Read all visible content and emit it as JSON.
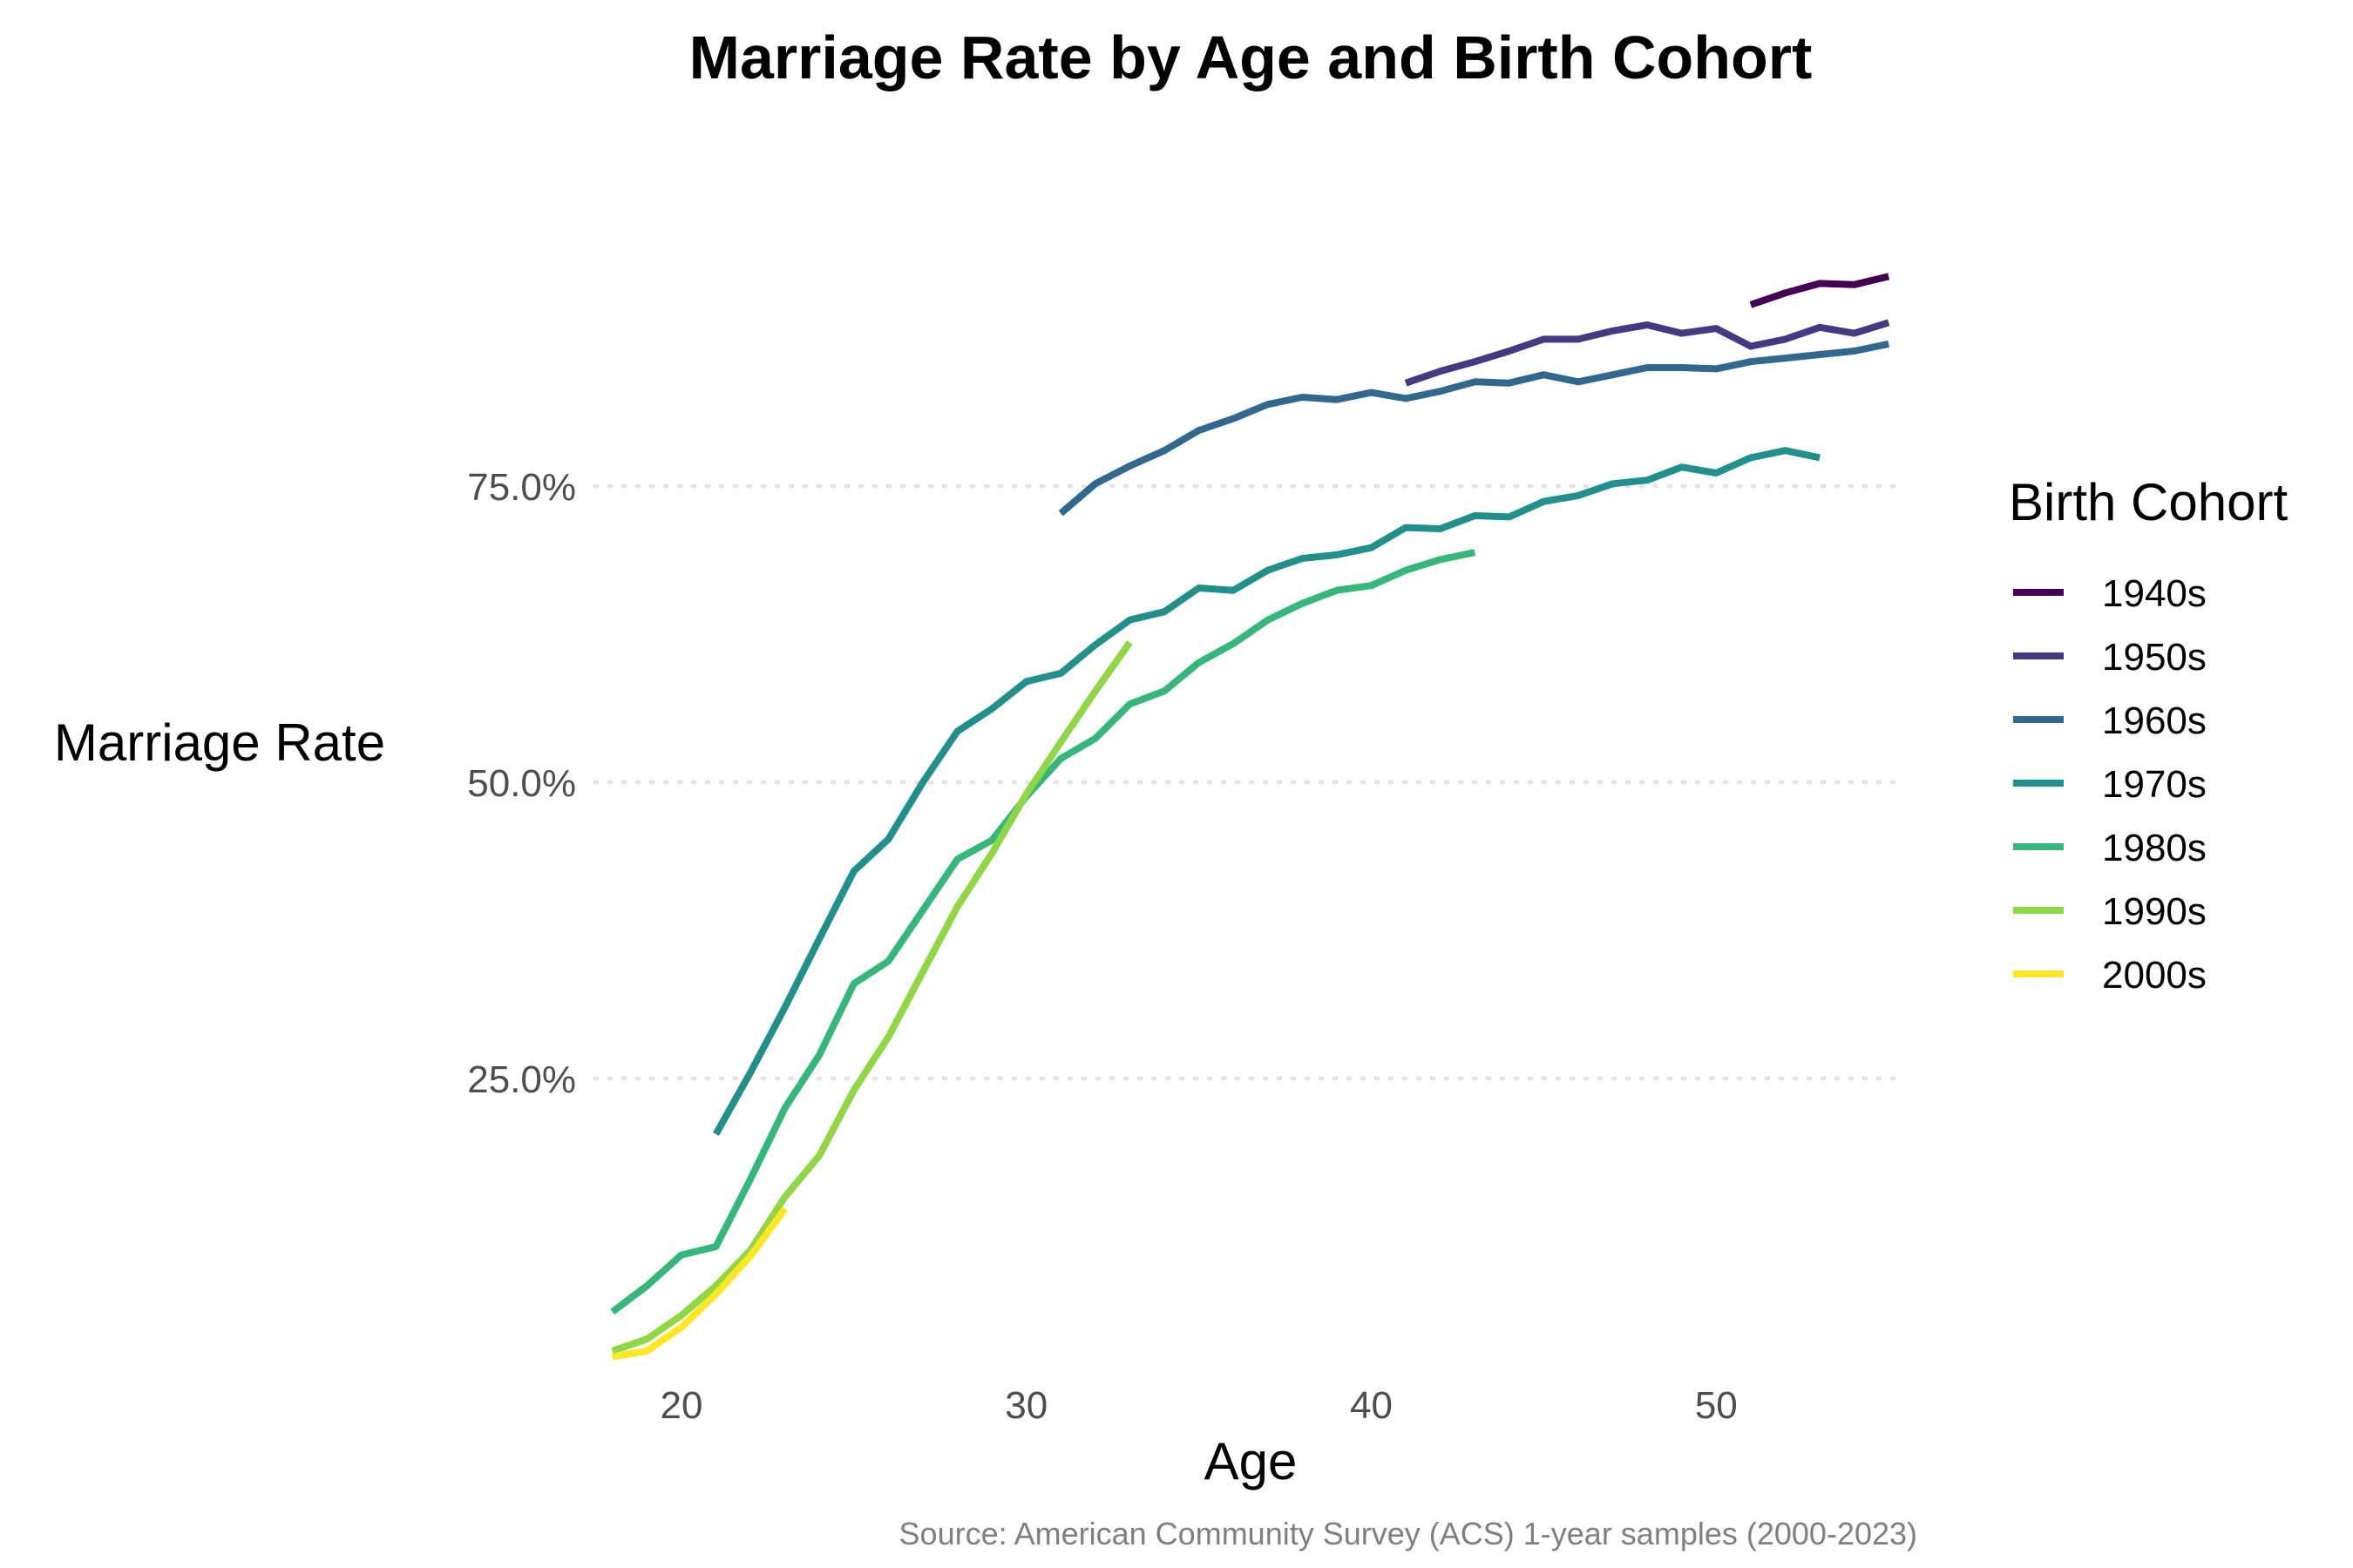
{
  "chart_data": {
    "type": "line",
    "title": "Marriage Rate by Age and Birth Cohort",
    "xlabel": "Age",
    "ylabel": "Marriage Rate",
    "caption": "Source: American Community Survey (ACS) 1-year samples (2000-2023)",
    "xlim": [
      17.5,
      55.5
    ],
    "ylim": [
      0.0,
      1.05
    ],
    "xticks": [
      20,
      30,
      40,
      50
    ],
    "yticks": [
      0.25,
      0.5,
      0.75
    ],
    "ytick_labels": [
      "25.0%",
      "50.0%",
      "75.0%"
    ],
    "grid": "horizontal major only, dotted",
    "legend": {
      "title": "Birth Cohort",
      "position": "right"
    },
    "series": [
      {
        "name": "1940s",
        "color": "#440154",
        "x": [
          51,
          52,
          53,
          54,
          55
        ],
        "y": [
          0.903,
          0.913,
          0.921,
          0.92,
          0.927
        ]
      },
      {
        "name": "1950s",
        "color": "#443a83",
        "x": [
          41,
          42,
          43,
          44,
          45,
          46,
          47,
          48,
          49,
          50,
          51,
          52,
          53,
          54,
          55
        ],
        "y": [
          0.837,
          0.847,
          0.855,
          0.864,
          0.874,
          0.874,
          0.881,
          0.886,
          0.879,
          0.883,
          0.868,
          0.874,
          0.884,
          0.879,
          0.888
        ]
      },
      {
        "name": "1960s",
        "color": "#31688e",
        "x": [
          31,
          32,
          33,
          34,
          35,
          36,
          37,
          38,
          39,
          40,
          41,
          42,
          43,
          44,
          45,
          46,
          47,
          48,
          49,
          50,
          51,
          52,
          53,
          54,
          55
        ],
        "y": [
          0.727,
          0.752,
          0.767,
          0.78,
          0.797,
          0.807,
          0.819,
          0.825,
          0.823,
          0.829,
          0.824,
          0.83,
          0.838,
          0.837,
          0.844,
          0.838,
          0.844,
          0.85,
          0.85,
          0.849,
          0.855,
          0.858,
          0.861,
          0.864,
          0.87
        ]
      },
      {
        "name": "1970s",
        "color": "#21908d",
        "x": [
          21,
          22,
          23,
          24,
          25,
          26,
          27,
          28,
          29,
          30,
          31,
          32,
          33,
          34,
          35,
          36,
          37,
          38,
          39,
          40,
          41,
          42,
          43,
          44,
          45,
          46,
          47,
          48,
          49,
          50,
          51,
          52,
          53
        ],
        "y": [
          0.203,
          0.255,
          0.31,
          0.368,
          0.425,
          0.452,
          0.5,
          0.543,
          0.562,
          0.585,
          0.592,
          0.616,
          0.637,
          0.644,
          0.664,
          0.662,
          0.679,
          0.689,
          0.692,
          0.698,
          0.715,
          0.714,
          0.725,
          0.724,
          0.737,
          0.742,
          0.752,
          0.755,
          0.766,
          0.761,
          0.774,
          0.78,
          0.774
        ]
      },
      {
        "name": "1980s",
        "color": "#35b779",
        "x": [
          18,
          19,
          20,
          21,
          22,
          23,
          24,
          25,
          26,
          27,
          28,
          29,
          30,
          31,
          32,
          33,
          34,
          35,
          36,
          37,
          38,
          39,
          40,
          41,
          42,
          43
        ],
        "y": [
          0.053,
          0.075,
          0.101,
          0.108,
          0.165,
          0.225,
          0.27,
          0.33,
          0.349,
          0.392,
          0.435,
          0.451,
          0.488,
          0.52,
          0.537,
          0.566,
          0.577,
          0.601,
          0.617,
          0.637,
          0.651,
          0.662,
          0.666,
          0.679,
          0.688,
          0.694
        ]
      },
      {
        "name": "1990s",
        "color": "#8fd744",
        "x": [
          18,
          19,
          20,
          21,
          22,
          23,
          24,
          25,
          26,
          27,
          28,
          29,
          30,
          31,
          32,
          33
        ],
        "y": [
          0.02,
          0.03,
          0.05,
          0.075,
          0.105,
          0.15,
          0.185,
          0.24,
          0.285,
          0.34,
          0.395,
          0.44,
          0.49,
          0.534,
          0.577,
          0.618
        ]
      },
      {
        "name": "2000s",
        "color": "#fde725",
        "x": [
          18,
          19,
          20,
          21,
          22,
          23
        ],
        "y": [
          0.015,
          0.02,
          0.04,
          0.068,
          0.1,
          0.14
        ]
      }
    ]
  }
}
